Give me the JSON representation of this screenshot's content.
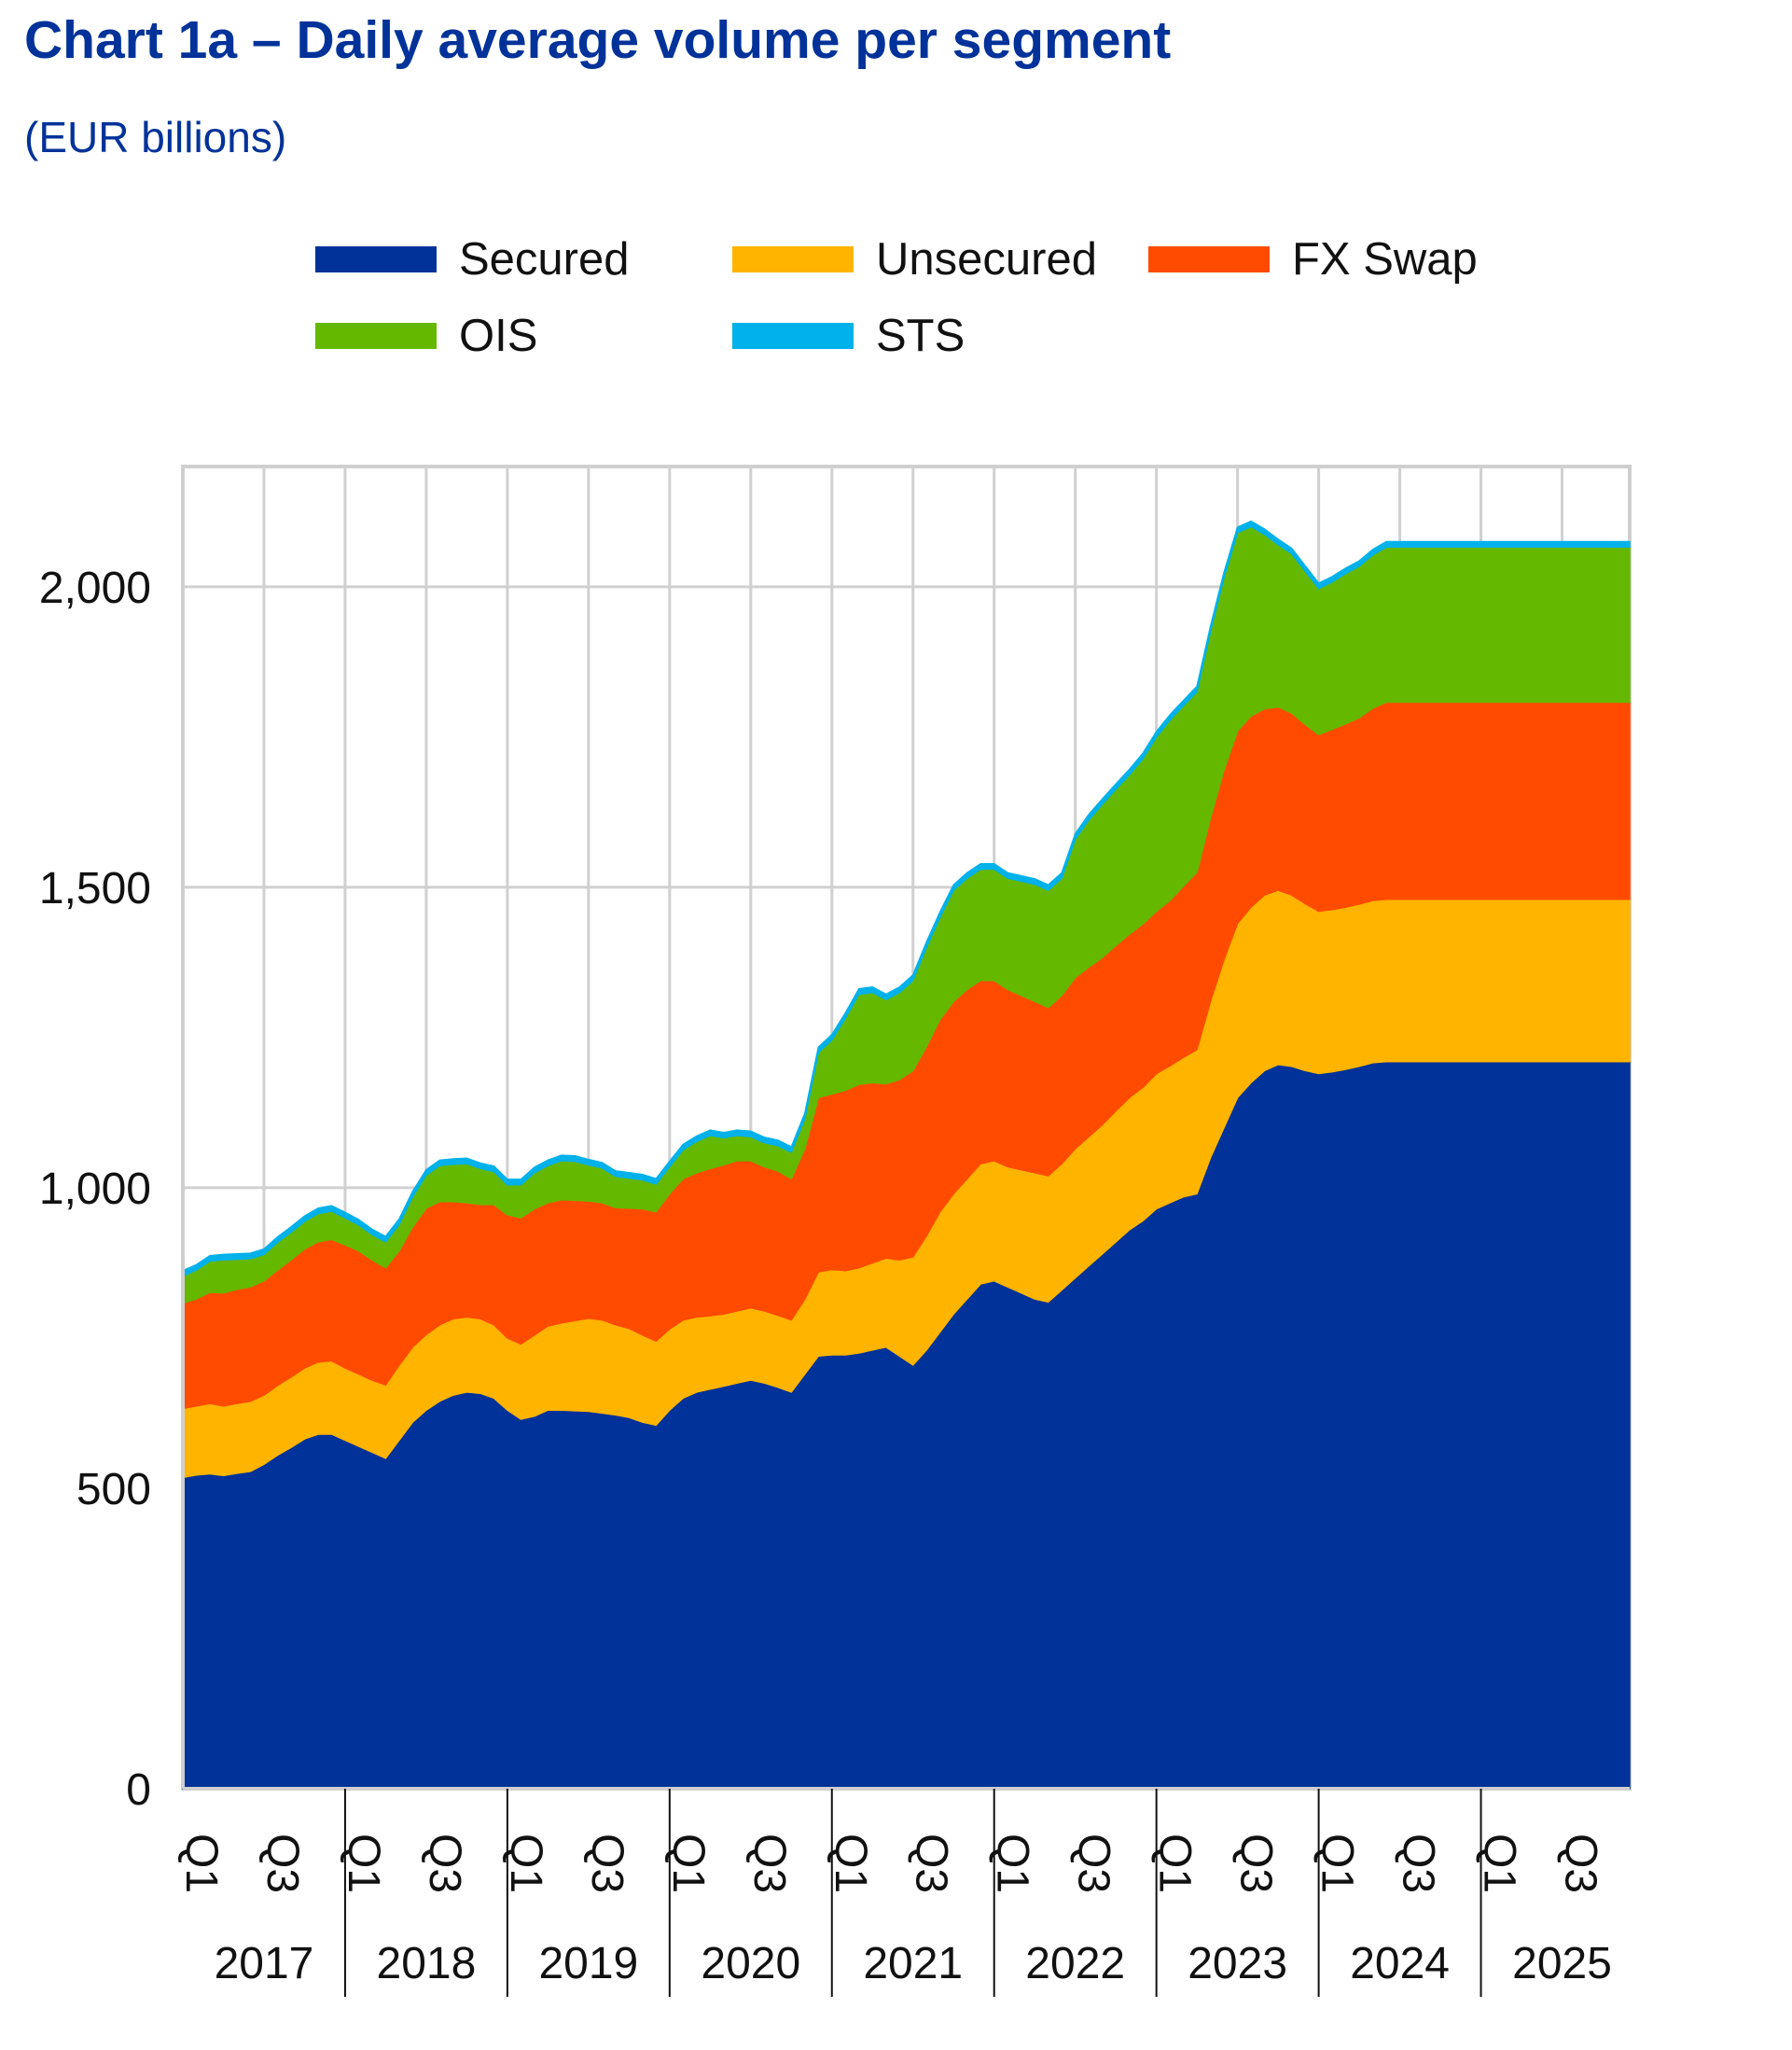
{
  "title": "Chart 1a – Daily average volume per segment",
  "subtitle": "(EUR billions)",
  "colors": {
    "Secured": "#003299",
    "Unsecured": "#FFB400",
    "FX Swap": "#FF4B00",
    "OIS": "#65B800",
    "STS": "#00B1EA"
  },
  "chart_data": {
    "type": "area",
    "stacked": true,
    "title": "Chart 1a – Daily average volume per segment",
    "subtitle": "(EUR billions)",
    "ylim": [
      0,
      2200
    ],
    "y_ticks": [
      0,
      500,
      1000,
      1500,
      2000
    ],
    "y_tick_labels": [
      "0",
      "500",
      "1,000",
      "1,500",
      "2,000"
    ],
    "grid": true,
    "legend_position": "top",
    "x_quarter_labels": [
      "Q1",
      "Q3",
      "Q1",
      "Q3",
      "Q1",
      "Q3",
      "Q1",
      "Q3",
      "Q1",
      "Q3",
      "Q1",
      "Q3",
      "Q1",
      "Q3",
      "Q1",
      "Q3",
      "Q1",
      "Q3"
    ],
    "x_year_labels": [
      "2017",
      "2018",
      "2019",
      "2020",
      "2021",
      "2022",
      "2023",
      "2024",
      "2025"
    ],
    "x": [
      "2017-01",
      "2017-02",
      "2017-03",
      "2017-04",
      "2017-05",
      "2017-06",
      "2017-07",
      "2017-08",
      "2017-09",
      "2017-10",
      "2017-11",
      "2017-12",
      "2018-01",
      "2018-02",
      "2018-03",
      "2018-04",
      "2018-05",
      "2018-06",
      "2018-07",
      "2018-08",
      "2018-09",
      "2018-10",
      "2018-11",
      "2018-12",
      "2019-01",
      "2019-02",
      "2019-03",
      "2019-04",
      "2019-05",
      "2019-06",
      "2019-07",
      "2019-08",
      "2019-09",
      "2019-10",
      "2019-11",
      "2019-12",
      "2020-01",
      "2020-02",
      "2020-03",
      "2020-04",
      "2020-05",
      "2020-06",
      "2020-07",
      "2020-08",
      "2020-09",
      "2020-10",
      "2020-11",
      "2020-12",
      "2021-01",
      "2021-02",
      "2021-03",
      "2021-04",
      "2021-05",
      "2021-06",
      "2021-07",
      "2021-08",
      "2021-09",
      "2021-10",
      "2021-11",
      "2021-12",
      "2022-01",
      "2022-02",
      "2022-03",
      "2022-04",
      "2022-05",
      "2022-06",
      "2022-07",
      "2022-08",
      "2022-09",
      "2022-10",
      "2022-11",
      "2022-12",
      "2023-01",
      "2023-02",
      "2023-03",
      "2023-04",
      "2023-05",
      "2023-06",
      "2023-07",
      "2023-08",
      "2023-09",
      "2023-10",
      "2023-11",
      "2023-12",
      "2024-01",
      "2024-02",
      "2024-03",
      "2024-04",
      "2024-05",
      "2024-06",
      "2024-07",
      "2024-08",
      "2024-09",
      "2024-10",
      "2024-11",
      "2024-12",
      "2025-01",
      "2025-02",
      "2025-03",
      "2025-04",
      "2025-05",
      "2025-06",
      "2025-07",
      "2025-08",
      "2025-09",
      "2025-10",
      "2025-11",
      "2025-12"
    ],
    "series": [
      {
        "name": "Secured",
        "values": [
          518,
          522,
          524,
          521,
          525,
          528,
          540,
          555,
          568,
          582,
          590,
          590,
          580,
          570,
          560,
          550,
          580,
          610,
          630,
          645,
          655,
          660,
          658,
          650,
          630,
          615,
          620,
          630,
          630,
          629,
          628,
          625,
          622,
          618,
          610,
          605,
          630,
          650,
          660,
          665,
          670,
          675,
          680,
          675,
          668,
          660,
          690,
          720,
          722,
          722,
          725,
          730,
          735,
          720,
          705,
          730,
          760,
          790,
          815,
          840,
          845,
          835,
          825,
          815,
          810,
          830,
          850,
          870,
          890,
          910,
          930,
          945,
          965,
          975,
          985,
          990,
          1050,
          1100,
          1150,
          1175,
          1195,
          1205,
          1202,
          1195,
          1190,
          1193,
          1197,
          1202,
          1208,
          1210,
          1210,
          1210,
          1210,
          1210,
          1210,
          1210,
          1210,
          1210,
          1210,
          1210,
          1210,
          1210,
          1210,
          1210,
          1210,
          1210,
          1210,
          1210
        ]
      },
      {
        "name": "Unsecured",
        "values": [
          115,
          115,
          117,
          116,
          116,
          117,
          115,
          116,
          117,
          118,
          120,
          122,
          120,
          120,
          120,
          122,
          125,
          125,
          126,
          127,
          127,
          125,
          124,
          122,
          120,
          125,
          135,
          140,
          145,
          150,
          155,
          155,
          150,
          148,
          145,
          140,
          135,
          130,
          125,
          122,
          120,
          120,
          120,
          120,
          120,
          120,
          125,
          140,
          142,
          140,
          142,
          145,
          148,
          160,
          180,
          190,
          200,
          200,
          200,
          200,
          200,
          200,
          205,
          210,
          210,
          210,
          215,
          215,
          215,
          218,
          220,
          222,
          225,
          228,
          232,
          240,
          260,
          280,
          290,
          292,
          292,
          290,
          285,
          278,
          270,
          270,
          270,
          270,
          270,
          270,
          270,
          270,
          270,
          270,
          270,
          270,
          270,
          270,
          270,
          270,
          270,
          270,
          270,
          270,
          270,
          270,
          270,
          270
        ]
      },
      {
        "name": "FX Swap",
        "values": [
          175,
          178,
          185,
          188,
          190,
          190,
          190,
          192,
          195,
          198,
          200,
          202,
          205,
          205,
          200,
          195,
          190,
          200,
          210,
          205,
          195,
          190,
          190,
          200,
          205,
          210,
          210,
          205,
          205,
          200,
          195,
          195,
          195,
          200,
          210,
          215,
          225,
          235,
          240,
          245,
          248,
          250,
          245,
          240,
          240,
          235,
          250,
          290,
          292,
          300,
          305,
          300,
          290,
          300,
          310,
          315,
          320,
          320,
          315,
          305,
          300,
          295,
          290,
          285,
          280,
          280,
          285,
          282,
          278,
          275,
          272,
          272,
          270,
          275,
          285,
          295,
          305,
          315,
          320,
          318,
          310,
          305,
          303,
          298,
          294,
          300,
          305,
          310,
          320,
          328,
          328,
          328,
          328,
          328,
          328,
          328,
          328,
          328,
          328,
          328,
          328,
          328,
          328,
          328,
          328,
          328,
          328,
          328
        ]
      },
      {
        "name": "OIS",
        "values": [
          45,
          48,
          52,
          55,
          50,
          47,
          44,
          46,
          46,
          46,
          47,
          47,
          45,
          43,
          42,
          43,
          44,
          50,
          55,
          60,
          62,
          65,
          60,
          55,
          50,
          55,
          60,
          62,
          65,
          65,
          60,
          58,
          52,
          50,
          48,
          46,
          45,
          48,
          52,
          55,
          45,
          42,
          40,
          40,
          42,
          44,
          50,
          75,
          90,
          120,
          150,
          150,
          140,
          145,
          150,
          165,
          170,
          185,
          185,
          185,
          185,
          185,
          190,
          195,
          195,
          195,
          230,
          245,
          255,
          260,
          265,
          275,
          290,
          300,
          300,
          300,
          310,
          320,
          330,
          315,
          290,
          270,
          265,
          255,
          243,
          245,
          250,
          252,
          255,
          258,
          258,
          258,
          258,
          258,
          258,
          258,
          258,
          258,
          258,
          258,
          258,
          258,
          258,
          258,
          258,
          258,
          258,
          258
        ]
      },
      {
        "name": "STS",
        "values": [
          9,
          9,
          9,
          9,
          9,
          9,
          9,
          9,
          9,
          9,
          9,
          9,
          9,
          9,
          9,
          9,
          9,
          9,
          9,
          9,
          9,
          9,
          9,
          9,
          9,
          9,
          9,
          9,
          9,
          9,
          9,
          9,
          9,
          9,
          9,
          9,
          9,
          9,
          9,
          9,
          9,
          9,
          9,
          9,
          9,
          9,
          9,
          9,
          9,
          9,
          9,
          9,
          9,
          9,
          9,
          9,
          9,
          9,
          9,
          9,
          9,
          9,
          9,
          9,
          9,
          9,
          9,
          9,
          9,
          9,
          9,
          9,
          9,
          9,
          9,
          9,
          9,
          9,
          9,
          9,
          9,
          9,
          9,
          9,
          9,
          9,
          9,
          9,
          9,
          9,
          9,
          9,
          9,
          9,
          9,
          9,
          9,
          9,
          9,
          9,
          9,
          9,
          9,
          9,
          9,
          9,
          9,
          9
        ]
      }
    ]
  }
}
